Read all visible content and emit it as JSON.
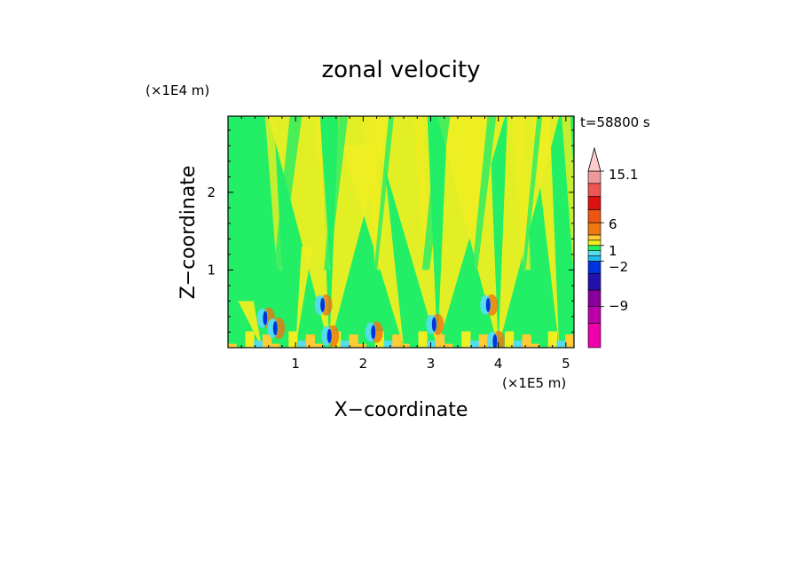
{
  "chart_data": {
    "type": "heatmap",
    "title": "zonal velocity",
    "xlabel": "X−coordinate",
    "ylabel": "Z−coordinate",
    "x_unit": "(×1E5 m)",
    "y_unit": "(×1E4 m)",
    "time_label": "t=58800 s",
    "xlim": [
      0,
      5.12
    ],
    "ylim": [
      0,
      2.98
    ],
    "x_ticks": [
      "1",
      "2",
      "3",
      "4",
      "5"
    ],
    "x_tick_values": [
      1,
      2,
      3,
      4,
      5
    ],
    "y_ticks": [
      "1",
      "2"
    ],
    "y_tick_values": [
      1,
      2
    ],
    "colorbar": {
      "labels": [
        "15.1",
        "6",
        "1",
        "−2",
        "−9"
      ],
      "label_values": [
        15.1,
        6,
        1,
        -2,
        -9
      ],
      "levels": [
        -16,
        -12,
        -9,
        -6,
        -4,
        -2,
        -1,
        0,
        1,
        2,
        4,
        6,
        8,
        10,
        12,
        15.1
      ],
      "colors": [
        "#ee00aa",
        "#bb00aa",
        "#880099",
        "#2211aa",
        "#0033dd",
        "#22bbee",
        "#55ddee",
        "#22ee66",
        "#eeee22",
        "#ffcc33",
        "#ee7711",
        "#ee5511",
        "#dd1111",
        "#ee5555",
        "#ee9999",
        "#ffcccc"
      ],
      "extend": "max"
    },
    "fields": {
      "background_color": "#22ee66",
      "positive_color": "#eeee22",
      "plumes": [
        {
          "x": 0.5,
          "z_top": 0.6,
          "width": 0.35,
          "side": "left"
        },
        {
          "x": 1.0,
          "z_top": 1.3,
          "width": 0.25,
          "side": "right"
        },
        {
          "x": 1.5,
          "z_top": 2.98,
          "width": 0.9,
          "side": "both"
        },
        {
          "x": 2.6,
          "z_top": 2.6,
          "width": 0.9,
          "side": "left"
        },
        {
          "x": 3.1,
          "z_top": 2.98,
          "width": 1.0,
          "side": "both"
        },
        {
          "x": 4.0,
          "z_top": 2.98,
          "width": 0.9,
          "side": "both"
        },
        {
          "x": 4.9,
          "z_top": 2.98,
          "width": 0.4,
          "side": "left"
        }
      ],
      "jets": [
        {
          "x": 0.55,
          "z": 0.38
        },
        {
          "x": 0.7,
          "z": 0.25
        },
        {
          "x": 1.4,
          "z": 0.55
        },
        {
          "x": 1.5,
          "z": 0.15
        },
        {
          "x": 2.15,
          "z": 0.2
        },
        {
          "x": 3.05,
          "z": 0.3
        },
        {
          "x": 3.85,
          "z": 0.55
        },
        {
          "x": 3.95,
          "z": 0.08
        }
      ]
    }
  }
}
